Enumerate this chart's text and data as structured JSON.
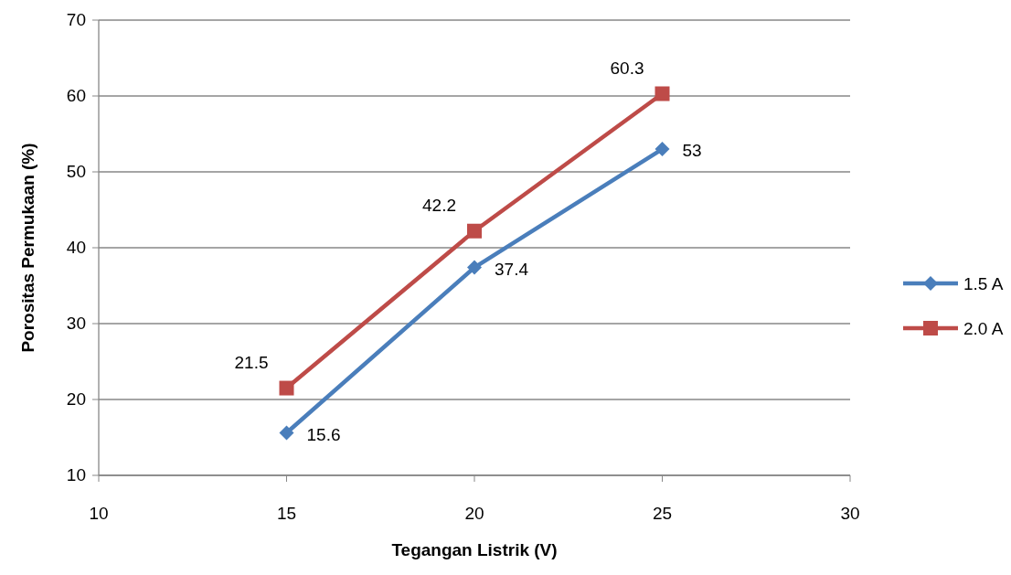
{
  "chart_data": {
    "type": "line",
    "xlabel": "Tegangan Listrik (V)",
    "ylabel": "Porositas Permukaan (%)",
    "x": [
      15,
      20,
      25
    ],
    "series": [
      {
        "name": "1.5 A",
        "color": "#4a7ebb",
        "marker": "diamond",
        "values": [
          15.6,
          37.4,
          53
        ]
      },
      {
        "name": "2.0 A",
        "color": "#be4b48",
        "marker": "square",
        "values": [
          21.5,
          42.2,
          60.3
        ]
      }
    ],
    "xlim": [
      10,
      30
    ],
    "xticks": [
      10,
      15,
      20,
      25,
      30
    ],
    "ylim": [
      10,
      70
    ],
    "yticks": [
      10,
      20,
      30,
      40,
      50,
      60,
      70
    ],
    "grid": "y",
    "legend": "right",
    "data_labels": true
  }
}
